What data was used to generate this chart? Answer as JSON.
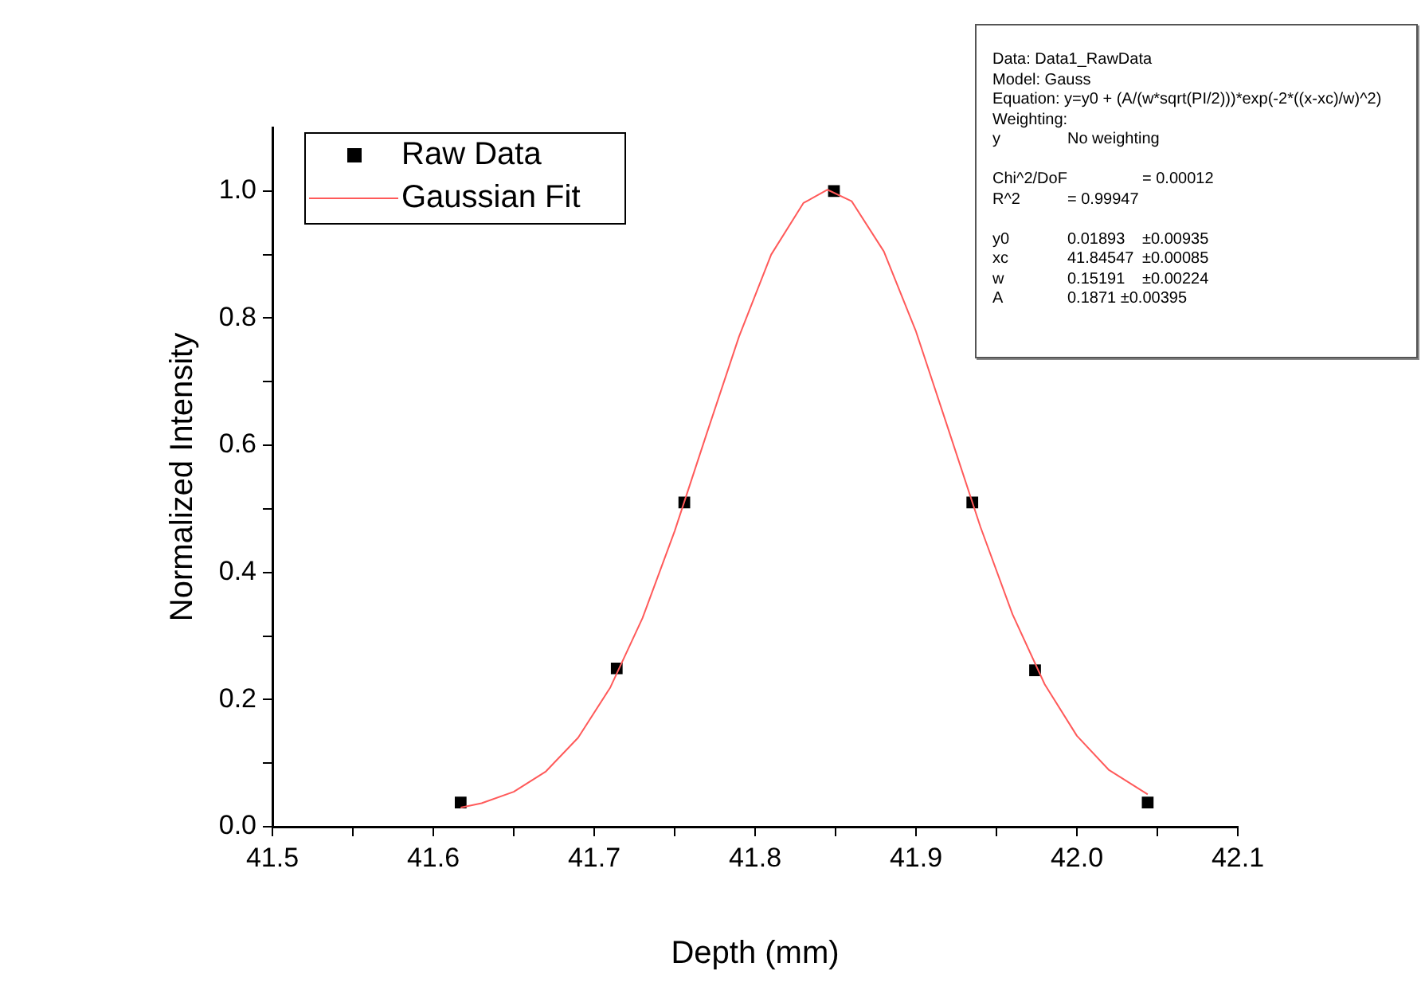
{
  "chart_data": {
    "type": "scatter",
    "xlabel": "Depth (mm)",
    "ylabel": "Normalized Intensity",
    "xlim": [
      41.5,
      42.1
    ],
    "xticks": [
      {
        "value": 41.5,
        "label": "41.5"
      },
      {
        "value": 41.55,
        "label": null
      },
      {
        "value": 41.6,
        "label": "41.6"
      },
      {
        "value": 41.65,
        "label": null
      },
      {
        "value": 41.7,
        "label": "41.7"
      },
      {
        "value": 41.75,
        "label": null
      },
      {
        "value": 41.8,
        "label": "41.8"
      },
      {
        "value": 41.85,
        "label": null
      },
      {
        "value": 41.9,
        "label": "41.9"
      },
      {
        "value": 41.95,
        "label": null
      },
      {
        "value": 42.0,
        "label": "42.0"
      },
      {
        "value": 42.05,
        "label": null
      },
      {
        "value": 42.1,
        "label": "42.1"
      }
    ],
    "ylim": [
      0,
      1.1
    ],
    "yticks": [
      {
        "value": 0,
        "label": "0.0"
      },
      {
        "value": 0.1,
        "label": null
      },
      {
        "value": 0.2,
        "label": "0.2"
      },
      {
        "value": 0.3,
        "label": null
      },
      {
        "value": 0.4,
        "label": "0.4"
      },
      {
        "value": 0.5,
        "label": null
      },
      {
        "value": 0.6,
        "label": "0.6"
      },
      {
        "value": 0.7,
        "label": null
      },
      {
        "value": 0.8,
        "label": "0.8"
      },
      {
        "value": 0.9,
        "label": null
      },
      {
        "value": 1.0,
        "label": "1.0"
      }
    ],
    "legend": "top left",
    "series": [
      {
        "name": "Raw Data",
        "type": "scatter",
        "marker": "square",
        "color": "#000000",
        "x": [
          41.617,
          41.714,
          41.756,
          41.849,
          41.935,
          41.974,
          42.044
        ],
        "values": [
          0.038,
          0.249,
          0.51,
          1.0,
          0.51,
          0.246,
          0.038
        ]
      },
      {
        "name": "Gaussian Fit",
        "type": "line",
        "marker": "none",
        "line_style": "solid",
        "color": "#ff5a5a",
        "x": [
          41.617,
          41.63,
          41.65,
          41.67,
          41.69,
          41.71,
          41.73,
          41.75,
          41.77,
          41.79,
          41.81,
          41.83,
          41.845,
          41.86,
          41.88,
          41.9,
          41.92,
          41.94,
          41.96,
          41.98,
          42.0,
          42.02,
          42.044
        ],
        "values": [
          0.03,
          0.037,
          0.055,
          0.087,
          0.14,
          0.219,
          0.328,
          0.465,
          0.619,
          0.771,
          0.9,
          0.981,
          1.002,
          0.984,
          0.905,
          0.779,
          0.626,
          0.472,
          0.334,
          0.224,
          0.143,
          0.089,
          0.051
        ]
      }
    ],
    "annotations": [
      "Data: Data1_RawData\nModel: Gauss\nEquation: y=y0 + (A/(w*sqrt(PI/2)))*exp(-2*((x-xc)/w)^2)\nWeighting:\ny\tNo weighting",
      "Chi^2/DoF\t= 0.00012\nR^2\t= 0.99947",
      "y0\t0.01893\t±0.00935\nxc\t41.84547\t±0.00085\nw\t0.15191\t±0.00224\nA\t0.1871 ±0.00395"
    ]
  }
}
